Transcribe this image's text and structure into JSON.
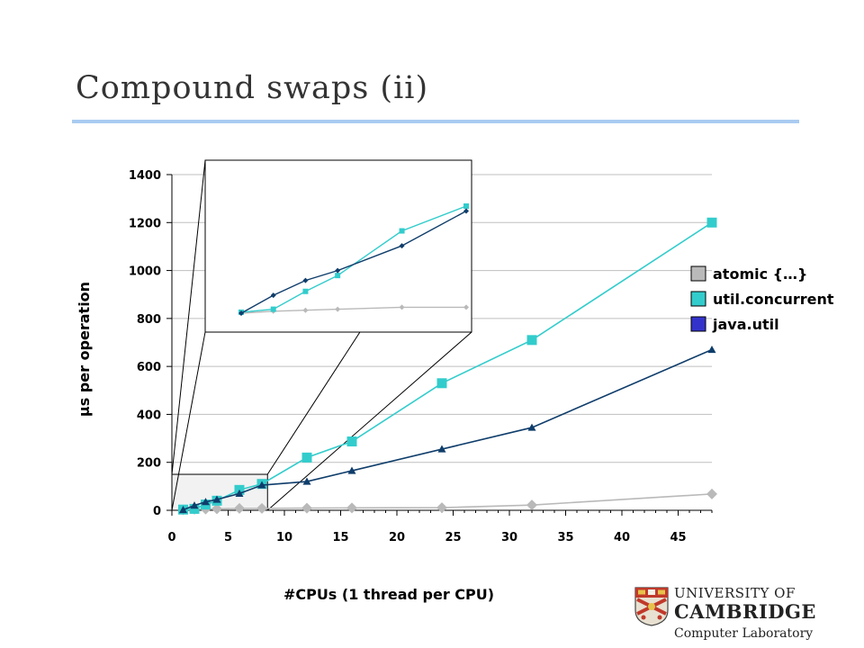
{
  "slide": {
    "title": "Compound swaps (ii)"
  },
  "logo": {
    "line1": "UNIVERSITY OF",
    "line2": "CAMBRIDGE",
    "line3": "Computer Laboratory"
  },
  "colors": {
    "title_rule": "#a9cbf0",
    "atomic": "#b9b9b9",
    "util_concurrent": "#33cccc",
    "java_util": "#0f3d6b",
    "legend_java_util": "#3333cc",
    "zoom_fill": "#f2f2f2",
    "grid": "#bfbfbf"
  },
  "chart_data": [
    {
      "type": "line",
      "xlabel": "#CPUs (1 thread per CPU)",
      "ylabel": "µs per operation",
      "xlim": [
        0,
        48
      ],
      "ylim": [
        0,
        1400
      ],
      "xticks": [
        "0",
        "5",
        "10",
        "15",
        "20",
        "25",
        "30",
        "35",
        "40",
        "45"
      ],
      "yticks": [
        "0",
        "200",
        "400",
        "600",
        "800",
        "1000",
        "1200",
        "1400"
      ],
      "grid": "horizontal",
      "legend_position": "right",
      "series": [
        {
          "name": "atomic {…}",
          "marker": "diamond",
          "x": [
            1,
            2,
            3,
            4,
            6,
            8,
            12,
            16,
            24,
            32,
            48
          ],
          "y": [
            2,
            4,
            5,
            6,
            8,
            8,
            9,
            10,
            11,
            22,
            68
          ]
        },
        {
          "name": "util.concurrent",
          "marker": "square",
          "x": [
            1,
            2,
            3,
            4,
            6,
            8,
            12,
            16,
            24,
            32,
            48
          ],
          "y": [
            3,
            6,
            24,
            40,
            85,
            110,
            220,
            287,
            530,
            710,
            1200
          ]
        },
        {
          "name": "java.util",
          "marker": "triangle",
          "x": [
            1,
            2,
            3,
            4,
            6,
            8,
            12,
            16,
            24,
            32,
            48
          ],
          "y": [
            2,
            20,
            35,
            45,
            70,
            105,
            120,
            165,
            255,
            345,
            670
          ]
        }
      ]
    },
    {
      "type": "line",
      "role": "inset zoom of x 1–8",
      "series": [
        {
          "name": "atomic {…}",
          "x": [
            1,
            2,
            3,
            4,
            6,
            8
          ],
          "y": [
            2,
            4,
            5,
            6,
            8,
            8
          ]
        },
        {
          "name": "util.concurrent",
          "x": [
            1,
            2,
            3,
            4,
            6,
            8
          ],
          "y": [
            3,
            6,
            24,
            40,
            85,
            110
          ]
        },
        {
          "name": "java.util",
          "x": [
            1,
            2,
            3,
            4,
            6,
            8
          ],
          "y": [
            2,
            20,
            35,
            45,
            70,
            105
          ]
        }
      ]
    }
  ]
}
